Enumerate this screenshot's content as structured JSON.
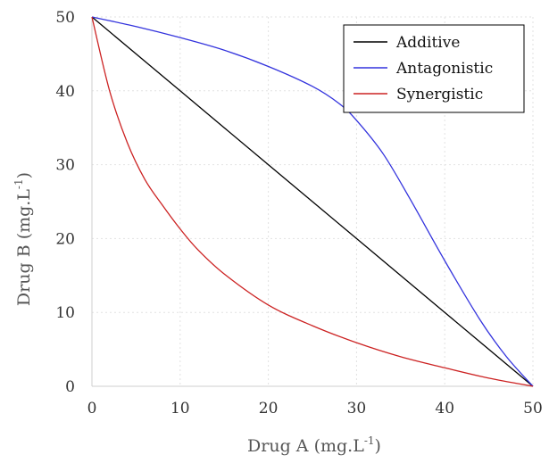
{
  "chart_data": {
    "type": "line",
    "xlabel": "Drug A (mg.L",
    "xlabel_sup": "-1",
    "xlabel_close": ")",
    "ylabel": "Drug B (mg.L",
    "ylabel_sup": "-1",
    "ylabel_close": ")",
    "xlim": [
      0,
      50
    ],
    "ylim": [
      0,
      50
    ],
    "xticks": [
      0,
      10,
      20,
      30,
      40,
      50
    ],
    "yticks": [
      0,
      10,
      20,
      30,
      40,
      50
    ],
    "grid": true,
    "legend_position": "top-right",
    "series": [
      {
        "name": "Additive",
        "color": "#000000",
        "x": [
          0,
          10,
          20,
          30,
          40,
          50
        ],
        "y": [
          50,
          40,
          30,
          20,
          10,
          0
        ]
      },
      {
        "name": "Antagonistic",
        "color": "#3333dd",
        "x": [
          0,
          5,
          10,
          15,
          20,
          25,
          28,
          30,
          33,
          36,
          40,
          44,
          47,
          50
        ],
        "y": [
          50,
          48.7,
          47.2,
          45.5,
          43.3,
          40.6,
          38.3,
          36,
          31.5,
          25.5,
          17,
          9,
          4,
          0
        ]
      },
      {
        "name": "Synergistic",
        "color": "#cc2222",
        "x": [
          0,
          2,
          4,
          6,
          8,
          10,
          12,
          15,
          20,
          25,
          30,
          35,
          40,
          45,
          50
        ],
        "y": [
          50,
          40,
          33,
          28,
          24.5,
          21.3,
          18.5,
          15.2,
          11,
          8.2,
          5.9,
          4,
          2.5,
          1.1,
          0
        ]
      }
    ]
  }
}
